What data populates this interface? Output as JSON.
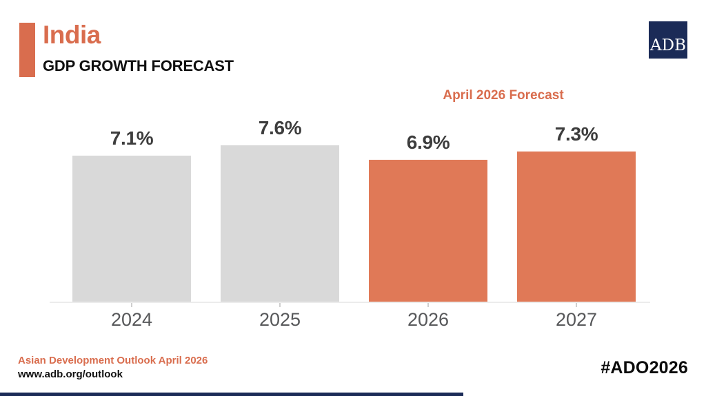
{
  "header": {
    "title": "India",
    "subtitle": "GDP GROWTH FORECAST",
    "logo_text": "ADB"
  },
  "chart_data": {
    "type": "bar",
    "title": "India GDP Growth Forecast",
    "annotation": "April 2026 Forecast",
    "categories": [
      "2024",
      "2025",
      "2026",
      "2027"
    ],
    "values": [
      7.1,
      7.6,
      6.9,
      7.3
    ],
    "value_labels": [
      "7.1%",
      "7.6%",
      "6.9%",
      "7.3%"
    ],
    "series_status": [
      "actual",
      "actual",
      "forecast",
      "forecast"
    ],
    "unit": "%",
    "ylim": [
      0,
      8
    ],
    "grid": false,
    "legend_position": "none",
    "colors": {
      "actual": "#D9D9D9",
      "forecast": "#E07957"
    }
  },
  "footer": {
    "source": "Asian Development Outlook April 2026",
    "url": "www.adb.org/outlook",
    "hashtag": "#ADO2026"
  },
  "colors": {
    "accent_orange": "#D96D4E",
    "navy": "#1B2B57",
    "value_label": "#3D3D3D",
    "axis_label": "#57585A"
  }
}
